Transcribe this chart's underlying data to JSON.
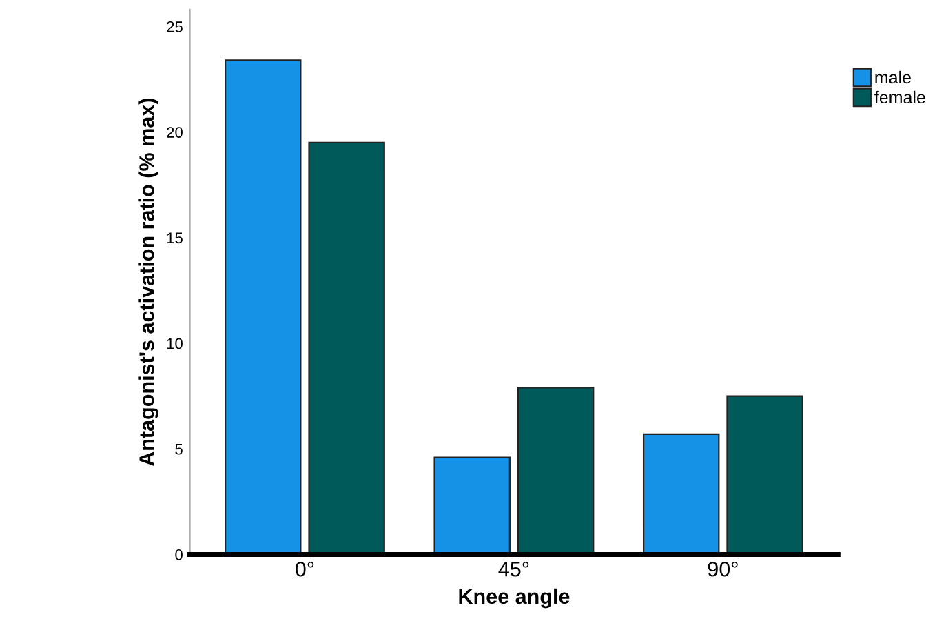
{
  "chart_data": {
    "type": "bar",
    "xlabel": "Knee angle",
    "ylabel": "Antagonist's activation ratio (% max)",
    "categories": [
      "0°",
      "45°",
      "90°"
    ],
    "series": [
      {
        "name": "male",
        "color": "#1591e6",
        "values": [
          23.4,
          4.6,
          5.7
        ]
      },
      {
        "name": "female",
        "color": "#005a5a",
        "values": [
          19.5,
          7.9,
          7.5
        ]
      }
    ],
    "ylim": [
      0,
      25.8
    ],
    "yticks": [
      0,
      5,
      10,
      15,
      20,
      25
    ],
    "grid": false,
    "legend": "top right"
  }
}
